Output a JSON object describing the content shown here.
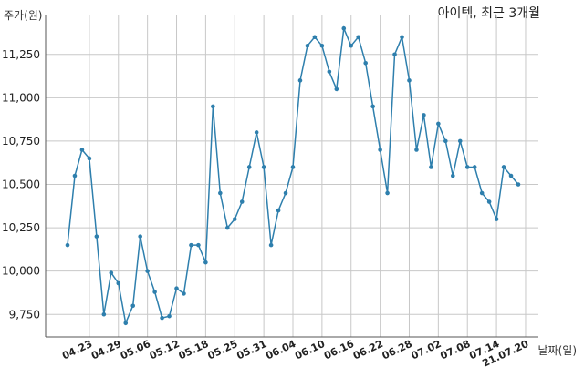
{
  "chart_data": {
    "type": "line",
    "title": "아이텍, 최근 3개월",
    "ylabel": "주가(원)",
    "xlabel": "날짜(일)",
    "ylim": [
      9620,
      11480
    ],
    "grid": true,
    "y_ticks": [
      9750,
      10000,
      10250,
      10500,
      10750,
      11000,
      11250
    ],
    "y_tick_labels": [
      "9,750",
      "10,000",
      "10,250",
      "10,500",
      "10,750",
      "11,000",
      "11,250"
    ],
    "x_tick_labels": [
      "04.23",
      "04.29",
      "05.06",
      "05.12",
      "05.18",
      "05.25",
      "05.31",
      "06.04",
      "06.10",
      "06.16",
      "06.22",
      "06.28",
      "07.02",
      "07.08",
      "07.14",
      "21.07.20"
    ],
    "x_tick_positions": [
      3,
      7,
      11,
      15,
      19,
      23,
      27,
      31,
      35,
      39,
      43,
      47,
      51,
      55,
      59,
      63
    ],
    "series": [
      {
        "color": "#2e7fad",
        "values": [
          10150,
          10550,
          10700,
          10650,
          10200,
          9750,
          9990,
          9930,
          9700,
          9800,
          10200,
          10000,
          9880,
          9730,
          9740,
          9900,
          9870,
          10150,
          10150,
          10050,
          10950,
          10450,
          10250,
          10300,
          10400,
          10600,
          10800,
          10600,
          10150,
          10350,
          10450,
          10600,
          11100,
          11300,
          11350,
          11300,
          11150,
          11050,
          11400,
          11300,
          11350,
          11200,
          10950,
          10700,
          10450,
          11250,
          11350,
          11100,
          10700,
          10900,
          10600,
          10850,
          10750,
          10550,
          10750,
          10600,
          10600,
          10450,
          10400,
          10300,
          10600,
          10550,
          10500
        ]
      }
    ]
  }
}
